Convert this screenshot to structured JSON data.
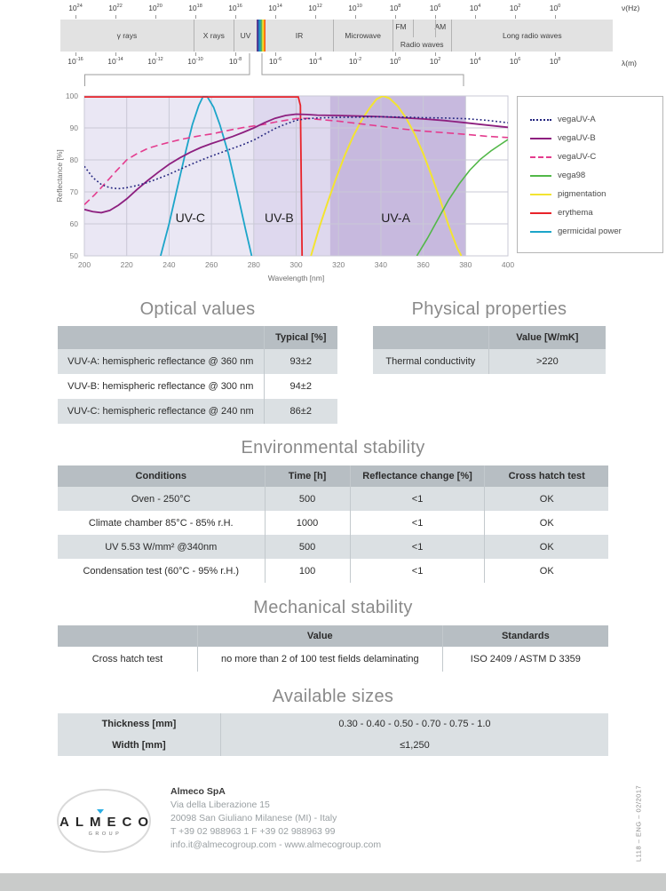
{
  "page": {
    "doc_code": "L118 – ENG – 02/2017"
  },
  "spectrum": {
    "freq_unit": "ν(Hz)",
    "wavelength_unit": "λ(m)",
    "freq_exponents": [
      24,
      22,
      20,
      18,
      16,
      14,
      12,
      10,
      8,
      6,
      4,
      2,
      0
    ],
    "wavelength_exponents": [
      -16,
      -14,
      -12,
      -10,
      -8,
      -6,
      -4,
      -2,
      0,
      2,
      4,
      6,
      8
    ],
    "bands": [
      {
        "label": "γ rays",
        "w": 24.1
      },
      {
        "label": "X rays",
        "w": 7.2,
        "div": true
      },
      {
        "label": "UV",
        "w": 4.3,
        "div": true
      },
      {
        "label": "",
        "w": 1.6,
        "type": "visible"
      },
      {
        "label": "IR",
        "w": 12.1
      },
      {
        "label": "Microwave",
        "w": 10.8,
        "div": true
      },
      {
        "type": "radio",
        "fm": "FM",
        "am": "AM",
        "label": "Radio waves",
        "w": 10.6,
        "div": true
      },
      {
        "label": "Long radio waves",
        "w": 29.3,
        "div": true
      }
    ]
  },
  "chart_data": {
    "type": "line",
    "xlabel": "Wavelength [nm]",
    "ylabel": "Reflectance [%]",
    "xlim": [
      200,
      400
    ],
    "ylim": [
      50,
      100
    ],
    "xticks": [
      200,
      220,
      240,
      260,
      280,
      300,
      320,
      340,
      360,
      380,
      400
    ],
    "yticks": [
      50,
      60,
      70,
      80,
      90,
      100
    ],
    "grid": true,
    "legend_position": "right",
    "regions": [
      {
        "label": "UV-C",
        "from": 200,
        "to": 280,
        "color": "#eae7f4",
        "label_x": 250,
        "label_y": 62
      },
      {
        "label": "UV-B",
        "from": 280,
        "to": 316,
        "color": "#ded8ee",
        "label_x": 292,
        "label_y": 62
      },
      {
        "label": "UV-A",
        "from": 316,
        "to": 380,
        "color": "#c7b9de",
        "label_x": 347,
        "label_y": 62
      }
    ],
    "series": [
      {
        "name": "vegaUV-A",
        "color": "#23247e",
        "style": "dotted",
        "width": 1.6,
        "points": [
          [
            200,
            78
          ],
          [
            204,
            74.5
          ],
          [
            208,
            72.3
          ],
          [
            212,
            71.3
          ],
          [
            216,
            71
          ],
          [
            220,
            71.3
          ],
          [
            225,
            72
          ],
          [
            230,
            73
          ],
          [
            235,
            74.2
          ],
          [
            240,
            75.5
          ],
          [
            245,
            77
          ],
          [
            250,
            78.5
          ],
          [
            255,
            79.9
          ],
          [
            260,
            81.2
          ],
          [
            265,
            82.4
          ],
          [
            270,
            83.6
          ],
          [
            275,
            84.8
          ],
          [
            280,
            86.2
          ],
          [
            285,
            88
          ],
          [
            290,
            89.8
          ],
          [
            295,
            91.2
          ],
          [
            300,
            92.4
          ],
          [
            305,
            92.9
          ],
          [
            310,
            93.1
          ],
          [
            320,
            93.3
          ],
          [
            330,
            93.4
          ],
          [
            340,
            93.5
          ],
          [
            350,
            93.4
          ],
          [
            360,
            93.2
          ],
          [
            370,
            93.1
          ],
          [
            380,
            92.9
          ],
          [
            390,
            92.4
          ],
          [
            400,
            91.6
          ]
        ]
      },
      {
        "name": "vegaUV-B",
        "color": "#8d1f7f",
        "style": "solid",
        "width": 1.8,
        "points": [
          [
            200,
            64.5
          ],
          [
            204,
            63.8
          ],
          [
            208,
            63.5
          ],
          [
            212,
            64.2
          ],
          [
            216,
            65.8
          ],
          [
            220,
            67.8
          ],
          [
            225,
            70.8
          ],
          [
            230,
            73.6
          ],
          [
            235,
            76.2
          ],
          [
            240,
            78.6
          ],
          [
            245,
            80.6
          ],
          [
            250,
            82.4
          ],
          [
            255,
            83.9
          ],
          [
            260,
            85.1
          ],
          [
            265,
            86.2
          ],
          [
            270,
            87.3
          ],
          [
            275,
            88.6
          ],
          [
            280,
            90
          ],
          [
            285,
            91.6
          ],
          [
            290,
            93
          ],
          [
            295,
            93.9
          ],
          [
            300,
            94.3
          ],
          [
            305,
            94.2
          ],
          [
            310,
            94
          ],
          [
            320,
            93.9
          ],
          [
            330,
            93.7
          ],
          [
            340,
            93.5
          ],
          [
            350,
            93.2
          ],
          [
            360,
            92.8
          ],
          [
            370,
            92.3
          ],
          [
            380,
            91.6
          ],
          [
            390,
            90.9
          ],
          [
            400,
            90.2
          ]
        ]
      },
      {
        "name": "vegaUV-C",
        "color": "#e43c8e",
        "style": "dashed",
        "width": 1.6,
        "points": [
          [
            200,
            66
          ],
          [
            205,
            69.2
          ],
          [
            210,
            72.8
          ],
          [
            215,
            76.5
          ],
          [
            220,
            80
          ],
          [
            225,
            82
          ],
          [
            230,
            83.6
          ],
          [
            235,
            84.6
          ],
          [
            240,
            85.5
          ],
          [
            245,
            86.3
          ],
          [
            250,
            87
          ],
          [
            255,
            87.6
          ],
          [
            260,
            88.1
          ],
          [
            265,
            88.8
          ],
          [
            270,
            89.5
          ],
          [
            275,
            90.1
          ],
          [
            280,
            90.6
          ],
          [
            285,
            91.1
          ],
          [
            290,
            91.8
          ],
          [
            295,
            92.4
          ],
          [
            300,
            92.9
          ],
          [
            305,
            93
          ],
          [
            310,
            92.7
          ],
          [
            320,
            92.1
          ],
          [
            330,
            91.3
          ],
          [
            340,
            90.5
          ],
          [
            350,
            89.7
          ],
          [
            360,
            89
          ],
          [
            370,
            88.5
          ],
          [
            380,
            88
          ],
          [
            390,
            87.4
          ],
          [
            400,
            87
          ]
        ]
      },
      {
        "name": "vega98",
        "color": "#52b848",
        "style": "solid",
        "width": 1.6,
        "points": [
          [
            357,
            50
          ],
          [
            362,
            55.5
          ],
          [
            367,
            61.5
          ],
          [
            372,
            67.5
          ],
          [
            377,
            72.5
          ],
          [
            382,
            76.8
          ],
          [
            387,
            80.2
          ],
          [
            392,
            82.8
          ],
          [
            396,
            84.6
          ],
          [
            400,
            86.4
          ]
        ]
      },
      {
        "name": "pigmentation",
        "color": "#f3e431",
        "style": "solid",
        "width": 2,
        "points": [
          [
            307,
            50
          ],
          [
            311,
            59
          ],
          [
            315,
            67
          ],
          [
            319,
            74.5
          ],
          [
            323,
            81.5
          ],
          [
            327,
            87.5
          ],
          [
            331,
            92.5
          ],
          [
            335,
            96.5
          ],
          [
            338,
            99
          ],
          [
            341,
            100
          ],
          [
            344,
            99.3
          ],
          [
            348,
            96.8
          ],
          [
            352,
            93
          ],
          [
            356,
            88
          ],
          [
            360,
            82
          ],
          [
            364,
            75
          ],
          [
            368,
            67.5
          ],
          [
            372,
            59.5
          ],
          [
            376,
            52.5
          ],
          [
            378,
            50
          ]
        ]
      },
      {
        "name": "erythema",
        "color": "#e8232a",
        "style": "solid",
        "width": 1.8,
        "points": [
          [
            200,
            99.7
          ],
          [
            301,
            99.7
          ],
          [
            302,
            97
          ],
          [
            302.8,
            50
          ]
        ]
      },
      {
        "name": "germicidal power",
        "color": "#1ca5c9",
        "style": "solid",
        "width": 1.8,
        "points": [
          [
            236,
            50
          ],
          [
            240,
            60
          ],
          [
            244,
            71.5
          ],
          [
            248,
            83
          ],
          [
            251,
            91
          ],
          [
            254,
            97
          ],
          [
            256,
            99.8
          ],
          [
            258,
            99.8
          ],
          [
            261,
            96.5
          ],
          [
            264,
            91
          ],
          [
            268,
            82
          ],
          [
            272,
            70.5
          ],
          [
            276,
            58.5
          ],
          [
            279,
            50
          ]
        ]
      }
    ]
  },
  "sections": {
    "optical": {
      "title": "Optical values",
      "header": [
        "",
        "Typical [%]"
      ],
      "rows": [
        [
          "VUV-A: hemispheric reflectance @ 360 nm",
          "93±2"
        ],
        [
          "VUV-B: hemispheric reflectance @ 300 nm",
          "94±2"
        ],
        [
          "VUV-C: hemispheric reflectance @ 240 nm",
          "86±2"
        ]
      ]
    },
    "physical": {
      "title": "Physical properties",
      "header": [
        "",
        "Value [W/mK]"
      ],
      "rows": [
        [
          "Thermal conductivity",
          ">220"
        ]
      ]
    },
    "environmental": {
      "title": "Environmental stability",
      "header": [
        "Conditions",
        "Time [h]",
        "Reflectance change [%]",
        "Cross hatch test"
      ],
      "rows": [
        [
          "Oven - 250°C",
          "500",
          "<1",
          "OK"
        ],
        [
          "Climate chamber 85°C - 85% r.H.",
          "1000",
          "<1",
          "OK"
        ],
        [
          "UV 5.53 W/mm² @340nm",
          "500",
          "<1",
          "OK"
        ],
        [
          "Condensation test (60°C - 95% r.H.)",
          "100",
          "<1",
          "OK"
        ]
      ]
    },
    "mechanical": {
      "title": "Mechanical stability",
      "header": [
        "",
        "Value",
        "Standards"
      ],
      "rows": [
        [
          "Cross hatch test",
          "no more than 2 of 100 test fields delaminating",
          "ISO 2409 / ASTM D 3359"
        ]
      ]
    },
    "sizes": {
      "title": "Available sizes",
      "rows": [
        [
          "Thickness [mm]",
          "0.30 - 0.40 - 0.50 - 0.70 - 0.75 - 1.0"
        ],
        [
          "Width [mm]",
          "≤1,250"
        ]
      ]
    }
  },
  "footer": {
    "logo_text": "ALMECO",
    "logo_sub": "GROUP",
    "logo_accent": "#2aaee4",
    "company": "Almeco SpA",
    "address1": "Via della Liberazione 15",
    "address2": "20098 San Giuliano Milanese (MI) - Italy",
    "phone": "T  +39 02 988963 1  F  +39 02 988963 99",
    "web": "info.it@almecogroup.com - www.almecogroup.com"
  },
  "colors": {
    "band_gray": "#e2e2e2",
    "table_header": "#b7bec3",
    "table_row_alt": "#dbe0e3",
    "heading_gray": "#8a8a8a",
    "bottom_bar": "#c9cbca"
  }
}
